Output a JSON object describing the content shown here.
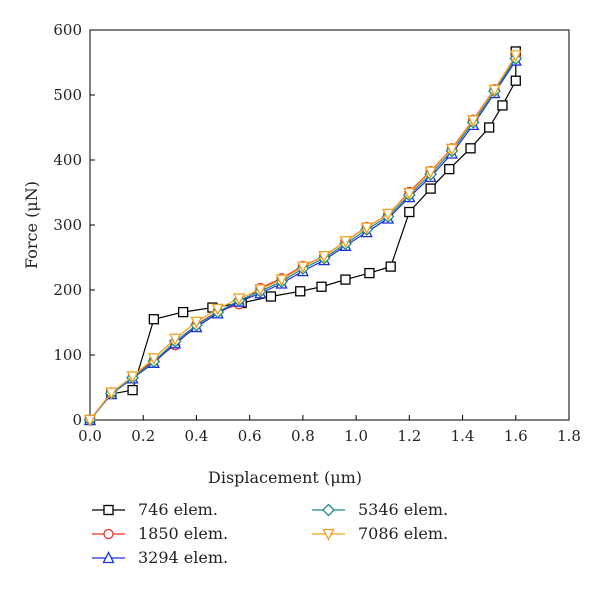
{
  "chart_data": {
    "type": "line",
    "title": "",
    "xlabel": "Displacement (μm)",
    "ylabel": "Force (μN)",
    "xlim": [
      0,
      1.8
    ],
    "ylim": [
      0,
      600
    ],
    "x_ticks": [
      "0.0",
      "0.2",
      "0.4",
      "0.6",
      "0.8",
      "1.0",
      "1.2",
      "1.4",
      "1.6",
      "1.8"
    ],
    "y_ticks": [
      "0",
      "100",
      "200",
      "300",
      "400",
      "500",
      "600"
    ],
    "grid": false,
    "legend_position": "bottom",
    "series": [
      {
        "name": "746 elem.",
        "color": "#000000",
        "marker": "square",
        "x": [
          0.0,
          0.08,
          0.16,
          0.24,
          0.35,
          0.46,
          0.57,
          0.68,
          0.79,
          0.87,
          0.96,
          1.05,
          1.13,
          1.2,
          1.28,
          1.35,
          1.43,
          1.5,
          1.55,
          1.6,
          1.6
        ],
        "y": [
          0,
          40,
          46,
          155,
          166,
          173,
          180,
          190,
          198,
          205,
          216,
          226,
          236,
          320,
          356,
          386,
          418,
          450,
          484,
          522,
          567
        ]
      },
      {
        "name": "1850 elem.",
        "color": "#e8332b",
        "marker": "circle",
        "x": [
          0.0,
          0.08,
          0.16,
          0.24,
          0.32,
          0.4,
          0.48,
          0.56,
          0.64,
          0.72,
          0.8,
          0.88,
          0.96,
          1.04,
          1.12,
          1.2,
          1.28,
          1.36,
          1.44,
          1.52,
          1.6
        ],
        "y": [
          0,
          42,
          66,
          92,
          115,
          147,
          167,
          178,
          203,
          218,
          237,
          252,
          275,
          297,
          316,
          351,
          383,
          418,
          462,
          509,
          559
        ]
      },
      {
        "name": "3294 elem.",
        "color": "#1a2ee0",
        "marker": "triangle-up",
        "x": [
          0.0,
          0.08,
          0.16,
          0.24,
          0.32,
          0.4,
          0.48,
          0.56,
          0.64,
          0.72,
          0.8,
          0.88,
          0.96,
          1.04,
          1.12,
          1.2,
          1.28,
          1.36,
          1.44,
          1.52,
          1.6
        ],
        "y": [
          0,
          40,
          64,
          88,
          118,
          143,
          164,
          182,
          195,
          210,
          229,
          246,
          268,
          289,
          310,
          343,
          374,
          410,
          454,
          503,
          553
        ]
      },
      {
        "name": "5346 elem.",
        "color": "#1e8a8a",
        "marker": "diamond",
        "x": [
          0.0,
          0.08,
          0.16,
          0.24,
          0.32,
          0.4,
          0.48,
          0.56,
          0.64,
          0.72,
          0.8,
          0.88,
          0.96,
          1.04,
          1.12,
          1.2,
          1.28,
          1.36,
          1.44,
          1.52,
          1.6
        ],
        "y": [
          0,
          41,
          65,
          90,
          121,
          146,
          166,
          184,
          198,
          213,
          233,
          249,
          271,
          293,
          313,
          346,
          378,
          414,
          458,
          506,
          556
        ]
      },
      {
        "name": "7086 elem.",
        "color": "#f0a020",
        "marker": "triangle-down",
        "x": [
          0.0,
          0.08,
          0.16,
          0.24,
          0.32,
          0.4,
          0.48,
          0.56,
          0.64,
          0.72,
          0.8,
          0.88,
          0.96,
          1.04,
          1.12,
          1.2,
          1.28,
          1.36,
          1.44,
          1.52,
          1.6
        ],
        "y": [
          0,
          42,
          67,
          95,
          125,
          151,
          171,
          187,
          201,
          216,
          236,
          252,
          275,
          296,
          317,
          349,
          382,
          417,
          461,
          508,
          561
        ]
      }
    ]
  }
}
